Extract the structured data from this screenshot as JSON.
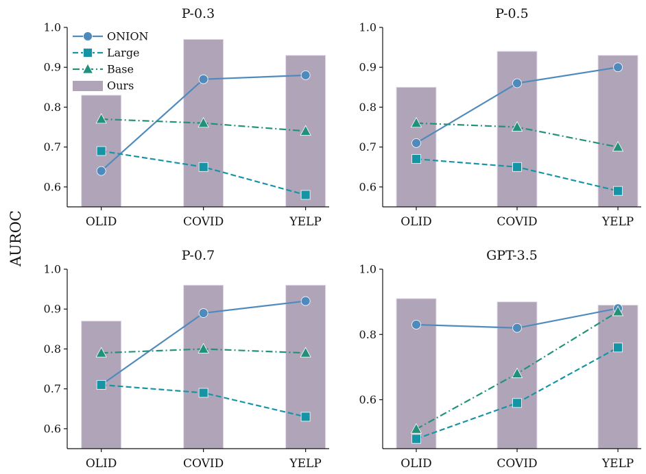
{
  "chart_data": {
    "type": "bar+line",
    "ylabel": "AUROC",
    "legend": {
      "placement": "top-left",
      "entries": [
        "ONION",
        "Large",
        "Base",
        "Ours"
      ]
    },
    "series_styles": {
      "ONION": {
        "color": "#4f8abd",
        "marker": "circle",
        "dash": "solid"
      },
      "Large": {
        "color": "#1594a6",
        "marker": "square",
        "dash": "dashed"
      },
      "Base": {
        "color": "#22917a",
        "marker": "triangle",
        "dash": "dashdot"
      },
      "Ours": {
        "color": "#b0a4b8",
        "marker": "bar"
      }
    },
    "panels": [
      {
        "title": "P-0.3",
        "categories": [
          "OLID",
          "COVID",
          "YELP"
        ],
        "ylim": [
          0.55,
          1.0
        ],
        "yticks": [
          "0.6",
          "0.7",
          "0.8",
          "0.9",
          "1.0"
        ],
        "ytick_values": [
          0.6,
          0.7,
          0.8,
          0.9,
          1.0
        ],
        "bars": [
          0.83,
          0.97,
          0.93
        ],
        "series": [
          {
            "name": "ONION",
            "values": [
              0.64,
              0.87,
              0.88
            ]
          },
          {
            "name": "Large",
            "values": [
              0.69,
              0.65,
              0.58
            ]
          },
          {
            "name": "Base",
            "values": [
              0.77,
              0.76,
              0.74
            ]
          }
        ]
      },
      {
        "title": "P-0.5",
        "categories": [
          "OLID",
          "COVID",
          "YELP"
        ],
        "ylim": [
          0.55,
          1.0
        ],
        "yticks": [
          "0.6",
          "0.7",
          "0.8",
          "0.9",
          "1.0"
        ],
        "ytick_values": [
          0.6,
          0.7,
          0.8,
          0.9,
          1.0
        ],
        "bars": [
          0.85,
          0.94,
          0.93
        ],
        "series": [
          {
            "name": "ONION",
            "values": [
              0.71,
              0.86,
              0.9
            ]
          },
          {
            "name": "Large",
            "values": [
              0.67,
              0.65,
              0.59
            ]
          },
          {
            "name": "Base",
            "values": [
              0.76,
              0.75,
              0.7
            ]
          }
        ]
      },
      {
        "title": "P-0.7",
        "categories": [
          "OLID",
          "COVID",
          "YELP"
        ],
        "ylim": [
          0.55,
          1.0
        ],
        "yticks": [
          "0.6",
          "0.7",
          "0.8",
          "0.9",
          "1.0"
        ],
        "ytick_values": [
          0.6,
          0.7,
          0.8,
          0.9,
          1.0
        ],
        "bars": [
          0.87,
          0.96,
          0.96
        ],
        "series": [
          {
            "name": "ONION",
            "values": [
              0.71,
              0.89,
              0.92
            ]
          },
          {
            "name": "Large",
            "values": [
              0.71,
              0.69,
              0.63
            ]
          },
          {
            "name": "Base",
            "values": [
              0.79,
              0.8,
              0.79
            ]
          }
        ]
      },
      {
        "title": "GPT-3.5",
        "categories": [
          "OLID",
          "COVID",
          "YELP"
        ],
        "ylim": [
          0.45,
          1.0
        ],
        "yticks": [
          "0.6",
          "0.8",
          "1.0"
        ],
        "ytick_values": [
          0.6,
          0.8,
          1.0
        ],
        "bars": [
          0.91,
          0.9,
          0.89
        ],
        "series": [
          {
            "name": "ONION",
            "values": [
              0.83,
              0.82,
              0.88
            ]
          },
          {
            "name": "Large",
            "values": [
              0.48,
              0.59,
              0.76
            ]
          },
          {
            "name": "Base",
            "values": [
              0.51,
              0.68,
              0.87
            ]
          }
        ]
      }
    ]
  }
}
